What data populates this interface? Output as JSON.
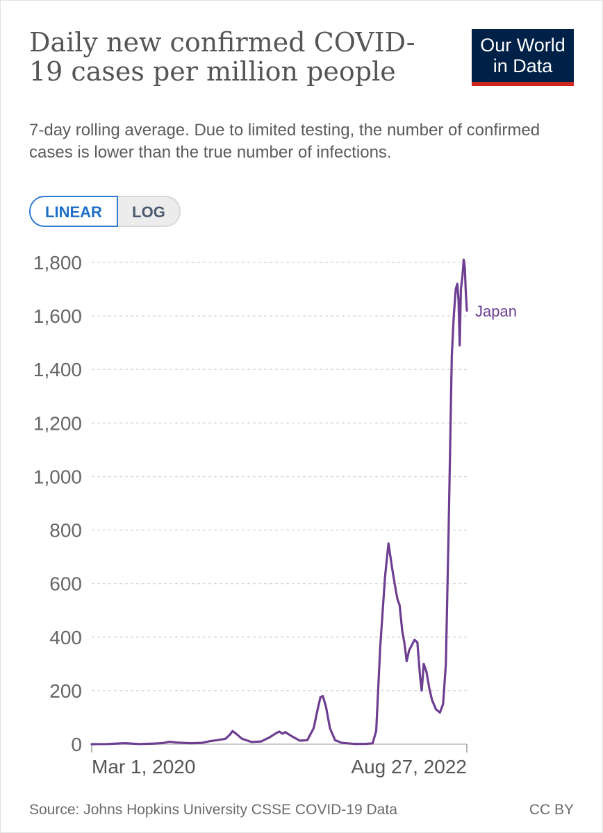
{
  "header": {
    "title": "Daily new confirmed COVID-19 cases per million people",
    "subtitle": "7-day rolling average. Due to limited testing, the number of confirmed cases is lower than the true number of infections."
  },
  "logo": {
    "line1": "Our World",
    "line2": "in Data",
    "bg_color": "#002147",
    "accent_color": "#ce261e"
  },
  "scale_toggle": {
    "linear_label": "LINEAR",
    "log_label": "LOG",
    "selected": "LINEAR"
  },
  "footer": {
    "source": "Source: Johns Hopkins University CSSE COVID-19 Data",
    "license": "CC BY"
  },
  "chart_data": {
    "type": "line",
    "title": "Daily new confirmed COVID-19 cases per million people",
    "xlabel": "",
    "ylabel": "",
    "x_start": "2020-01-22",
    "x_end": "2022-08-27",
    "x_tick_labels": [
      "Mar 1, 2020",
      "Aug 27, 2022"
    ],
    "y_ticks": [
      0,
      200,
      400,
      600,
      800,
      1000,
      1200,
      1400,
      1600,
      1800
    ],
    "y_tick_labels": [
      "0",
      "200",
      "400",
      "600",
      "800",
      "1,000",
      "1,200",
      "1,400",
      "1,600",
      "1,800"
    ],
    "ylim": [
      0,
      1800
    ],
    "grid": true,
    "legend": "line-end label",
    "series": [
      {
        "name": "Japan",
        "color": "#6d3e91",
        "points": [
          [
            "2020-01-22",
            0
          ],
          [
            "2020-03-01",
            0.5
          ],
          [
            "2020-04-15",
            3.5
          ],
          [
            "2020-05-20",
            0.5
          ],
          [
            "2020-06-25",
            2
          ],
          [
            "2020-07-20",
            4
          ],
          [
            "2020-08-05",
            9
          ],
          [
            "2020-08-25",
            6
          ],
          [
            "2020-09-25",
            3.5
          ],
          [
            "2020-10-25",
            4.5
          ],
          [
            "2020-11-15",
            11
          ],
          [
            "2020-12-05",
            15
          ],
          [
            "2020-12-25",
            20
          ],
          [
            "2021-01-05",
            35
          ],
          [
            "2021-01-12",
            49
          ],
          [
            "2021-01-20",
            40
          ],
          [
            "2021-02-05",
            20
          ],
          [
            "2021-03-01",
            8
          ],
          [
            "2021-03-25",
            10
          ],
          [
            "2021-04-15",
            25
          ],
          [
            "2021-05-01",
            40
          ],
          [
            "2021-05-10",
            47
          ],
          [
            "2021-05-18",
            39
          ],
          [
            "2021-05-25",
            45
          ],
          [
            "2021-06-10",
            30
          ],
          [
            "2021-07-01",
            13
          ],
          [
            "2021-07-20",
            15
          ],
          [
            "2021-08-05",
            60
          ],
          [
            "2021-08-15",
            130
          ],
          [
            "2021-08-22",
            175
          ],
          [
            "2021-08-28",
            180
          ],
          [
            "2021-09-05",
            140
          ],
          [
            "2021-09-15",
            60
          ],
          [
            "2021-09-28",
            15
          ],
          [
            "2021-10-15",
            5
          ],
          [
            "2021-11-15",
            1
          ],
          [
            "2021-12-15",
            1
          ],
          [
            "2022-01-01",
            3
          ],
          [
            "2022-01-10",
            50
          ],
          [
            "2022-01-20",
            360
          ],
          [
            "2022-02-01",
            620
          ],
          [
            "2022-02-05",
            680
          ],
          [
            "2022-02-10",
            750
          ],
          [
            "2022-02-15",
            700
          ],
          [
            "2022-02-20",
            650
          ],
          [
            "2022-03-01",
            570
          ],
          [
            "2022-03-05",
            540
          ],
          [
            "2022-03-10",
            520
          ],
          [
            "2022-03-17",
            420
          ],
          [
            "2022-03-22",
            380
          ],
          [
            "2022-03-28",
            310
          ],
          [
            "2022-04-03",
            350
          ],
          [
            "2022-04-10",
            370
          ],
          [
            "2022-04-17",
            390
          ],
          [
            "2022-04-24",
            380
          ],
          [
            "2022-05-01",
            250
          ],
          [
            "2022-05-05",
            200
          ],
          [
            "2022-05-10",
            300
          ],
          [
            "2022-05-17",
            270
          ],
          [
            "2022-05-24",
            210
          ],
          [
            "2022-05-31",
            165
          ],
          [
            "2022-06-10",
            130
          ],
          [
            "2022-06-20",
            118
          ],
          [
            "2022-06-28",
            150
          ],
          [
            "2022-07-05",
            300
          ],
          [
            "2022-07-12",
            800
          ],
          [
            "2022-07-20",
            1450
          ],
          [
            "2022-07-25",
            1600
          ],
          [
            "2022-07-30",
            1700
          ],
          [
            "2022-08-03",
            1720
          ],
          [
            "2022-08-06",
            1660
          ],
          [
            "2022-08-09",
            1490
          ],
          [
            "2022-08-12",
            1700
          ],
          [
            "2022-08-16",
            1750
          ],
          [
            "2022-08-19",
            1810
          ],
          [
            "2022-08-22",
            1780
          ],
          [
            "2022-08-24",
            1700
          ],
          [
            "2022-08-27",
            1620
          ]
        ]
      }
    ]
  }
}
